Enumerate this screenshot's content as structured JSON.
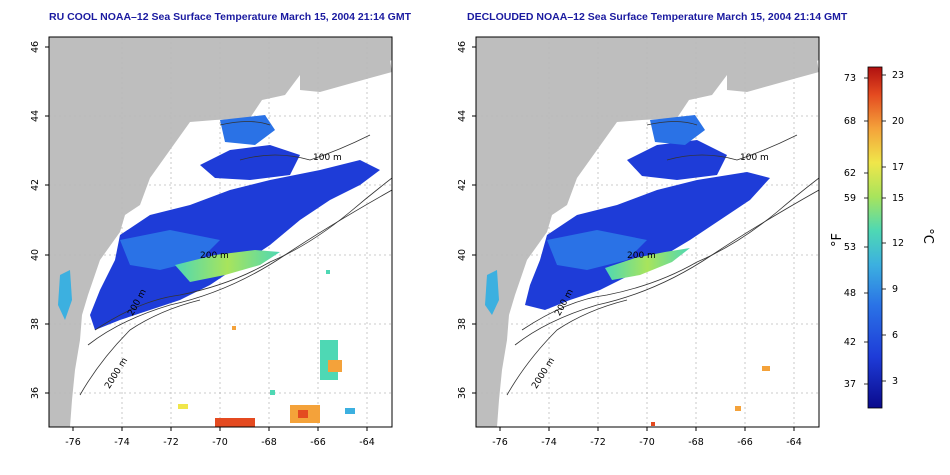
{
  "panels": [
    {
      "title": "RU COOL NOAA–12 Sea Surface Temperature March 15, 2004 21:14 GMT",
      "x_ticks": [
        "-76",
        "-74",
        "-72",
        "-70",
        "-68",
        "-66",
        "-64"
      ],
      "y_ticks": [
        "36",
        "38",
        "40",
        "42",
        "44",
        "46"
      ],
      "contour_labels": [
        "100 m",
        "200 m",
        "2000 m",
        "200 m"
      ]
    },
    {
      "title": "DECLOUDED NOAA–12 Sea Surface Temperature March 15, 2004 21:14 GMT",
      "x_ticks": [
        "-76",
        "-74",
        "-72",
        "-70",
        "-68",
        "-66",
        "-64"
      ],
      "y_ticks": [
        "36",
        "38",
        "40",
        "42",
        "44",
        "46"
      ],
      "contour_labels": [
        "100 m",
        "200 m",
        "2000 m",
        "200 m"
      ]
    }
  ],
  "colorbar": {
    "fahrenheit_ticks": [
      "73",
      "68",
      "62",
      "59",
      "53",
      "48",
      "42",
      "37"
    ],
    "celsius_ticks": [
      "23",
      "20",
      "17",
      "15",
      "12",
      "9",
      "6",
      "3"
    ],
    "f_label": "°F",
    "c_label": "°C",
    "colors": [
      "#0a0a8c",
      "#1e3cd8",
      "#2a72e6",
      "#3cb0e0",
      "#4ed8b4",
      "#a8e45c",
      "#f0e64a",
      "#f4a23a",
      "#e44a20",
      "#b01010"
    ]
  },
  "colors": {
    "land": "#bebebe",
    "water": "#ffffff",
    "title_blue": "#1a1aa0"
  }
}
